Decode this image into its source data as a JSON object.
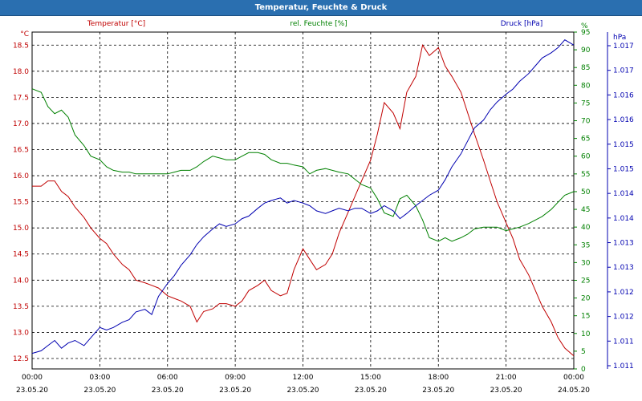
{
  "window": {
    "title": "Temperatur, Feuchte & Druck"
  },
  "chart_data": {
    "type": "line",
    "title": "Temperatur, Feuchte & Druck",
    "x_ticks": [
      {
        "time": "00:00",
        "date": "23.05.20",
        "h": 0
      },
      {
        "time": "03:00",
        "date": "23.05.20",
        "h": 3
      },
      {
        "time": "06:00",
        "date": "23.05.20",
        "h": 6
      },
      {
        "time": "09:00",
        "date": "23.05.20",
        "h": 9
      },
      {
        "time": "12:00",
        "date": "23.05.20",
        "h": 12
      },
      {
        "time": "15:00",
        "date": "23.05.20",
        "h": 15
      },
      {
        "time": "18:00",
        "date": "23.05.20",
        "h": 18
      },
      {
        "time": "21:00",
        "date": "23.05.20",
        "h": 21
      },
      {
        "time": "00:00",
        "date": "24.05.20",
        "h": 24
      }
    ],
    "xlim_hours": [
      0,
      24
    ],
    "grid": true,
    "colors": {
      "temperature": "#c00000",
      "humidity": "#008000",
      "pressure": "#0000b0",
      "grid": "#000000"
    },
    "axes": {
      "left": {
        "unit": "°C",
        "ylim": [
          12.3,
          18.75
        ],
        "ticks": [
          "12.5",
          "13.0",
          "13.5",
          "14.0",
          "14.5",
          "15.0",
          "15.5",
          "16.0",
          "16.5",
          "17.0",
          "17.5",
          "18.0",
          "18.5"
        ]
      },
      "right1": {
        "unit": "%",
        "ylim": [
          0,
          95
        ],
        "ticks": [
          "0",
          "5",
          "10",
          "15",
          "20",
          "25",
          "30",
          "35",
          "40",
          "45",
          "50",
          "55",
          "60",
          "65",
          "70",
          "75",
          "80",
          "85",
          "90",
          "95"
        ]
      },
      "right2": {
        "unit": "hPa",
        "ylim": [
          1010.8,
          1017.3
        ],
        "ticks": [
          "1.011",
          "1.011",
          "1.012",
          "1.012",
          "1.013",
          "1.013",
          "1.014",
          "1.014",
          "1.015",
          "1.015",
          "1.016",
          "1.016",
          "1.017",
          "1.017"
        ]
      }
    },
    "series": [
      {
        "name": "Temperatur [°C]",
        "axis": "left",
        "color": "#c00000",
        "x": [
          0,
          0.4,
          0.7,
          1,
          1.3,
          1.6,
          1.9,
          2.3,
          2.6,
          3,
          3.3,
          3.6,
          4,
          4.3,
          4.6,
          5,
          5.3,
          5.6,
          6,
          6.3,
          6.6,
          7,
          7.3,
          7.6,
          8,
          8.3,
          8.6,
          9,
          9.3,
          9.6,
          10,
          10.3,
          10.6,
          11,
          11.3,
          11.6,
          12,
          12.3,
          12.6,
          13,
          13.3,
          13.6,
          14,
          14.3,
          14.6,
          15,
          15.3,
          15.6,
          16,
          16.3,
          16.6,
          17,
          17.3,
          17.6,
          18,
          18.3,
          18.6,
          19,
          19.3,
          19.6,
          20,
          20.3,
          20.6,
          21,
          21.3,
          21.6,
          22,
          22.3,
          22.6,
          23,
          23.3,
          23.6,
          24
        ],
        "values": [
          15.8,
          15.8,
          15.9,
          15.9,
          15.7,
          15.6,
          15.4,
          15.2,
          15.0,
          14.8,
          14.7,
          14.5,
          14.3,
          14.2,
          14.0,
          13.95,
          13.9,
          13.85,
          13.7,
          13.65,
          13.6,
          13.5,
          13.2,
          13.4,
          13.45,
          13.55,
          13.55,
          13.5,
          13.6,
          13.8,
          13.9,
          14.0,
          13.8,
          13.7,
          13.75,
          14.2,
          14.6,
          14.4,
          14.2,
          14.3,
          14.5,
          14.9,
          15.3,
          15.6,
          15.9,
          16.3,
          16.8,
          17.4,
          17.2,
          16.9,
          17.6,
          17.9,
          18.5,
          18.3,
          18.45,
          18.1,
          17.9,
          17.6,
          17.2,
          16.8,
          16.3,
          15.9,
          15.5,
          15.1,
          14.8,
          14.4,
          14.1,
          13.8,
          13.5,
          13.2,
          12.9,
          12.7,
          12.55
        ]
      },
      {
        "name": "rel. Feuchte [%]",
        "axis": "right1",
        "color": "#008000",
        "x": [
          0,
          0.4,
          0.7,
          1,
          1.3,
          1.6,
          1.9,
          2.3,
          2.6,
          3,
          3.3,
          3.6,
          4,
          4.3,
          4.6,
          5,
          5.3,
          5.6,
          6,
          6.3,
          6.6,
          7,
          7.3,
          7.6,
          8,
          8.3,
          8.6,
          9,
          9.3,
          9.6,
          10,
          10.3,
          10.6,
          11,
          11.3,
          11.6,
          12,
          12.3,
          12.6,
          13,
          13.3,
          13.6,
          14,
          14.3,
          14.6,
          15,
          15.3,
          15.6,
          16,
          16.3,
          16.6,
          17,
          17.3,
          17.6,
          18,
          18.3,
          18.6,
          19,
          19.3,
          19.6,
          20,
          20.3,
          20.6,
          21,
          21.3,
          21.6,
          22,
          22.3,
          22.6,
          23,
          23.3,
          23.6,
          24
        ],
        "values": [
          79,
          78,
          74,
          72,
          73,
          71,
          66,
          63,
          60,
          59,
          57,
          56,
          55.5,
          55.5,
          55,
          55,
          55,
          55,
          55,
          55.5,
          56,
          56,
          57,
          58.5,
          60,
          59.5,
          59,
          59,
          60,
          61,
          61,
          60.5,
          59,
          58,
          58,
          57.5,
          57,
          55,
          56,
          56.5,
          56,
          55.5,
          55,
          53.5,
          52,
          51,
          48,
          44,
          43,
          48,
          49,
          46,
          42,
          37,
          36,
          37,
          36,
          37,
          38,
          39.5,
          40,
          40,
          40,
          39,
          39.5,
          40,
          41,
          42,
          43,
          45,
          47,
          49,
          50
        ]
      },
      {
        "name": "Druck [hPa]",
        "axis": "right2",
        "color": "#0000b0",
        "x": [
          0,
          0.4,
          0.7,
          1,
          1.3,
          1.6,
          1.9,
          2.3,
          2.6,
          3,
          3.3,
          3.6,
          4,
          4.3,
          4.6,
          5,
          5.3,
          5.6,
          6,
          6.3,
          6.6,
          7,
          7.3,
          7.6,
          8,
          8.3,
          8.6,
          9,
          9.3,
          9.6,
          10,
          10.3,
          10.6,
          11,
          11.3,
          11.6,
          12,
          12.3,
          12.6,
          13,
          13.3,
          13.6,
          14,
          14.3,
          14.6,
          15,
          15.3,
          15.6,
          16,
          16.3,
          16.6,
          17,
          17.3,
          17.6,
          18,
          18.3,
          18.6,
          19,
          19.3,
          19.6,
          20,
          20.3,
          20.6,
          21,
          21.3,
          21.6,
          22,
          22.3,
          22.6,
          23,
          23.3,
          23.6,
          24
        ],
        "values": [
          1011.1,
          1011.15,
          1011.25,
          1011.35,
          1011.2,
          1011.3,
          1011.35,
          1011.25,
          1011.4,
          1011.6,
          1011.55,
          1011.6,
          1011.7,
          1011.75,
          1011.9,
          1011.95,
          1011.85,
          1012.2,
          1012.45,
          1012.6,
          1012.8,
          1013.0,
          1013.2,
          1013.35,
          1013.5,
          1013.6,
          1013.55,
          1013.6,
          1013.7,
          1013.75,
          1013.9,
          1014.0,
          1014.05,
          1014.1,
          1014.0,
          1014.05,
          1014.0,
          1013.95,
          1013.85,
          1013.8,
          1013.85,
          1013.9,
          1013.85,
          1013.9,
          1013.9,
          1013.8,
          1013.85,
          1013.95,
          1013.85,
          1013.7,
          1013.8,
          1013.95,
          1014.05,
          1014.15,
          1014.25,
          1014.45,
          1014.7,
          1014.95,
          1015.2,
          1015.45,
          1015.6,
          1015.8,
          1015.95,
          1016.1,
          1016.2,
          1016.35,
          1016.5,
          1016.65,
          1016.8,
          1016.9,
          1017.0,
          1017.15,
          1017.05
        ]
      }
    ]
  }
}
